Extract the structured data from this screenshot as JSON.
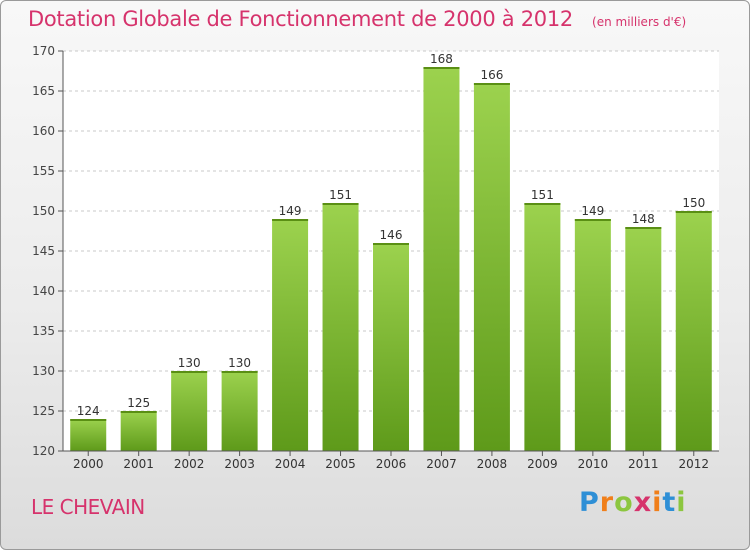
{
  "title": "Dotation Globale de Fonctionnement de 2000 à 2012",
  "unit_note": "(en milliers d'€)",
  "place": "LE CHEVAIN",
  "logo": {
    "letters": [
      "P",
      "r",
      "o",
      "x",
      "i",
      "t",
      "i"
    ],
    "colors": [
      "#2e8fd6",
      "#f07f1a",
      "#8cc63f",
      "#d6336c",
      "#f07f1a",
      "#2e8fd6",
      "#8cc63f"
    ]
  },
  "colors": {
    "bar_top": "#9cd24e",
    "bar_bottom": "#5e9a1a",
    "accent": "#d6336c"
  },
  "chart_data": {
    "type": "bar",
    "categories": [
      "2000",
      "2001",
      "2002",
      "2003",
      "2004",
      "2005",
      "2006",
      "2007",
      "2008",
      "2009",
      "2010",
      "2011",
      "2012"
    ],
    "values": [
      124,
      125,
      130,
      130,
      149,
      151,
      146,
      168,
      166,
      151,
      149,
      148,
      150
    ],
    "ylim": [
      120,
      170
    ],
    "yticks": [
      120,
      125,
      130,
      135,
      140,
      145,
      150,
      155,
      160,
      165,
      170
    ],
    "grid": "horizontal dashed",
    "data_labels": true
  }
}
